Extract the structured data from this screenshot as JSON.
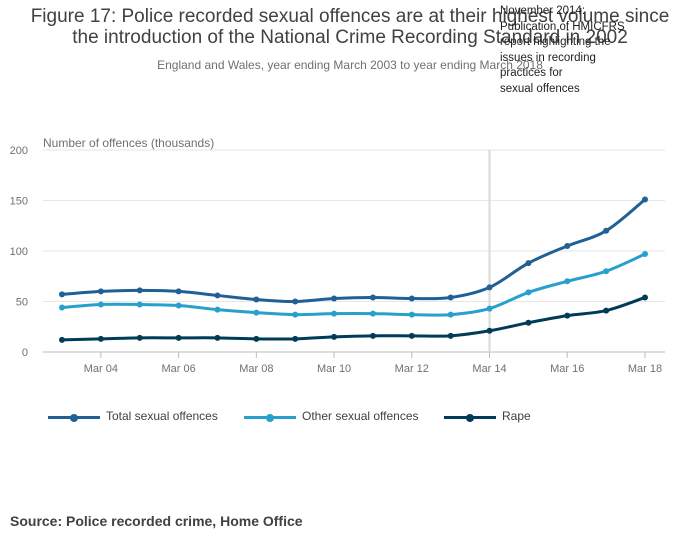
{
  "title": {
    "line1": "Figure 17: Police recorded sexual offences are at their highest volume since",
    "line2": "the introduction of the National Crime Recording Standard in 2002"
  },
  "subtitle": "England and Wales, year ending March 2003 to year ending March 2018",
  "annotation": "November 2014:\nPublication of HMICFRS\nreport highlighting the\nissues in recording\npractices for\nsexual offences",
  "source": "Source: Police recorded crime, Home Office",
  "chart_data": {
    "type": "line",
    "ylabel": "Number of offences (thousands)",
    "ylim": [
      0,
      200
    ],
    "yticks": [
      0,
      50,
      100,
      150,
      200
    ],
    "x": [
      2003,
      2004,
      2005,
      2006,
      2007,
      2008,
      2009,
      2010,
      2011,
      2012,
      2013,
      2014,
      2015,
      2016,
      2017,
      2018
    ],
    "xticks": [
      {
        "value": 2004,
        "label": "Mar 04"
      },
      {
        "value": 2006,
        "label": "Mar 06"
      },
      {
        "value": 2008,
        "label": "Mar 08"
      },
      {
        "value": 2010,
        "label": "Mar 10"
      },
      {
        "value": 2012,
        "label": "Mar 12"
      },
      {
        "value": 2014,
        "label": "Mar 14"
      },
      {
        "value": 2016,
        "label": "Mar 16"
      },
      {
        "value": 2018,
        "label": "Mar 18"
      }
    ],
    "annotation_x": 2014,
    "grid": true,
    "legend_position": "bottom",
    "series": [
      {
        "name": "Total sexual offences",
        "color": "#206095",
        "values": [
          57,
          60,
          61,
          60,
          56,
          52,
          50,
          53,
          54,
          53,
          54,
          64,
          88,
          105,
          120,
          151
        ]
      },
      {
        "name": "Other sexual offences",
        "color": "#27a0cc",
        "values": [
          44,
          47,
          47,
          46,
          42,
          39,
          37,
          38,
          38,
          37,
          37,
          43,
          59,
          70,
          80,
          97
        ]
      },
      {
        "name": "Rape",
        "color": "#003c57",
        "values": [
          12,
          13,
          14,
          14,
          14,
          13,
          13,
          15,
          16,
          16,
          16,
          21,
          29,
          36,
          41,
          54
        ]
      }
    ]
  }
}
